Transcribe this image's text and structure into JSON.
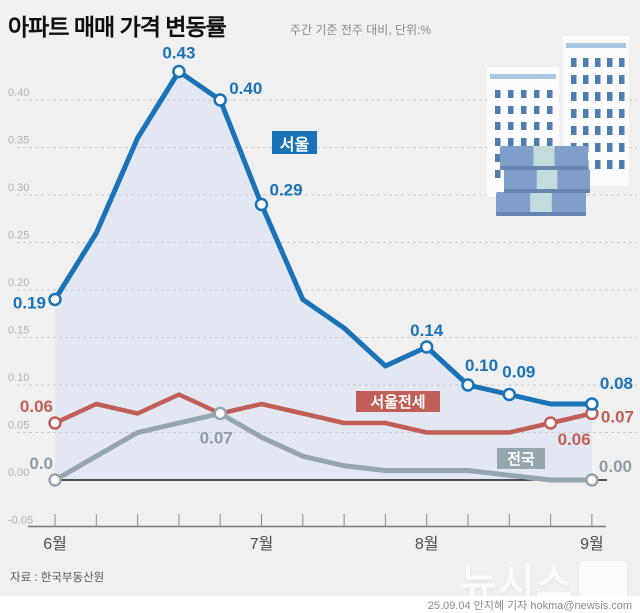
{
  "header": {
    "title": "아파트 매매 가격 변동률",
    "subtitle": "주간 기준 전주 대비, 단위:%"
  },
  "footer": {
    "source": "자료 : 한국부동산원",
    "watermark": "뉴시스",
    "credit": "25.09.04 안지혜 기자 hokma@newsis.com"
  },
  "colors": {
    "background": "#f0f0f0",
    "seoul_blue": "#1a72b8",
    "jeonse_red": "#c05f58",
    "national_gray": "#95a6ae",
    "area_fill": "#e3e7f1",
    "gridline": "#c9c9c9",
    "zero_line": "#1a1a1a",
    "axis_line": "#777777",
    "y_label": "#b2b2b2",
    "x_label": "#4d4d4d"
  },
  "chart_data": {
    "type": "line",
    "title": "아파트 매매 가격 변동률",
    "subtitle": "주간 기준 전주 대비, 단위:%",
    "unit": "%",
    "x_axis": {
      "tick_count": 14,
      "months": [
        {
          "label": "6월",
          "tick": 0
        },
        {
          "label": "7월",
          "tick": 5
        },
        {
          "label": "8월",
          "tick": 9
        },
        {
          "label": "9월",
          "tick": 13
        }
      ]
    },
    "y_axis": {
      "lim": [
        -0.05,
        0.45
      ],
      "grid": "dashed",
      "ticks": [
        {
          "label": "0.40",
          "v": 0.4
        },
        {
          "label": "0.35",
          "v": 0.35
        },
        {
          "label": "0.30",
          "v": 0.3
        },
        {
          "label": "0.25",
          "v": 0.25
        },
        {
          "label": "0.20",
          "v": 0.2
        },
        {
          "label": "0.15",
          "v": 0.15
        },
        {
          "label": "0.10",
          "v": 0.1
        },
        {
          "label": "0.05",
          "v": 0.05
        },
        {
          "label": "0.00",
          "v": 0.0
        },
        {
          "label": "-0.05",
          "v": -0.05
        }
      ]
    },
    "series": [
      {
        "name": "서울",
        "color": "#1a72b8",
        "area": true,
        "area_color": "#e3e7f1",
        "values": [
          0.19,
          0.26,
          0.36,
          0.43,
          0.4,
          0.29,
          0.19,
          0.16,
          0.12,
          0.14,
          0.1,
          0.09,
          0.08,
          0.08
        ],
        "labels": [
          {
            "i": 0,
            "text": "0.19",
            "anchor": "end",
            "dx": -9,
            "dy": 9
          },
          {
            "i": 3,
            "text": "0.43",
            "anchor": "middle",
            "dx": 0,
            "dy": -13
          },
          {
            "i": 4,
            "text": "0.40",
            "anchor": "start",
            "dx": 9,
            "dy": -6
          },
          {
            "i": 5,
            "text": "0.29",
            "anchor": "start",
            "dx": 8,
            "dy": -9
          },
          {
            "i": 9,
            "text": "0.14",
            "anchor": "middle",
            "dx": 0,
            "dy": -11
          },
          {
            "i": 10,
            "text": "0.10",
            "anchor": "start",
            "dx": -3,
            "dy": -14
          },
          {
            "i": 11,
            "text": "0.09",
            "anchor": "start",
            "dx": -7,
            "dy": -17
          },
          {
            "i": 13,
            "text": "0.08",
            "anchor": "start",
            "dx": 8,
            "dy": -15
          }
        ],
        "name_box": {
          "x": 272,
          "y": 131,
          "w": 45,
          "h": 23,
          "font": 16
        }
      },
      {
        "name": "서울전세",
        "color": "#c05f58",
        "values": [
          0.06,
          0.08,
          0.07,
          0.09,
          0.07,
          0.08,
          0.07,
          0.06,
          0.06,
          0.05,
          0.05,
          0.05,
          0.06,
          0.07
        ],
        "labels": [
          {
            "i": 0,
            "text": "0.06",
            "anchor": "end",
            "dx": -2,
            "dy": -11
          },
          {
            "i": 12,
            "text": "0.06",
            "anchor": "start",
            "dx": 7,
            "dy": 22
          },
          {
            "i": 13,
            "text": "0.07",
            "anchor": "start",
            "dx": 9,
            "dy": 9
          }
        ],
        "name_box": {
          "x": 356,
          "y": 391,
          "w": 84,
          "h": 21,
          "font": 15
        }
      },
      {
        "name": "전국",
        "color": "#95a6ae",
        "label_color": "#8f9ca4",
        "values": [
          0.0,
          0.025,
          0.05,
          0.06,
          0.07,
          0.045,
          0.025,
          0.015,
          0.01,
          0.01,
          0.01,
          0.005,
          0.0,
          0.0
        ],
        "labels": [
          {
            "i": 0,
            "text": "0.0",
            "anchor": "end",
            "dx": -2,
            "dy": -11
          },
          {
            "i": 4,
            "text": "0.07",
            "anchor": "middle",
            "dx": -4,
            "dy": 30
          },
          {
            "i": 13,
            "text": "0.00",
            "anchor": "start",
            "dx": 7,
            "dy": -8
          }
        ],
        "name_box": {
          "x": 497,
          "y": 448,
          "w": 48,
          "h": 21,
          "font": 15
        }
      }
    ]
  }
}
